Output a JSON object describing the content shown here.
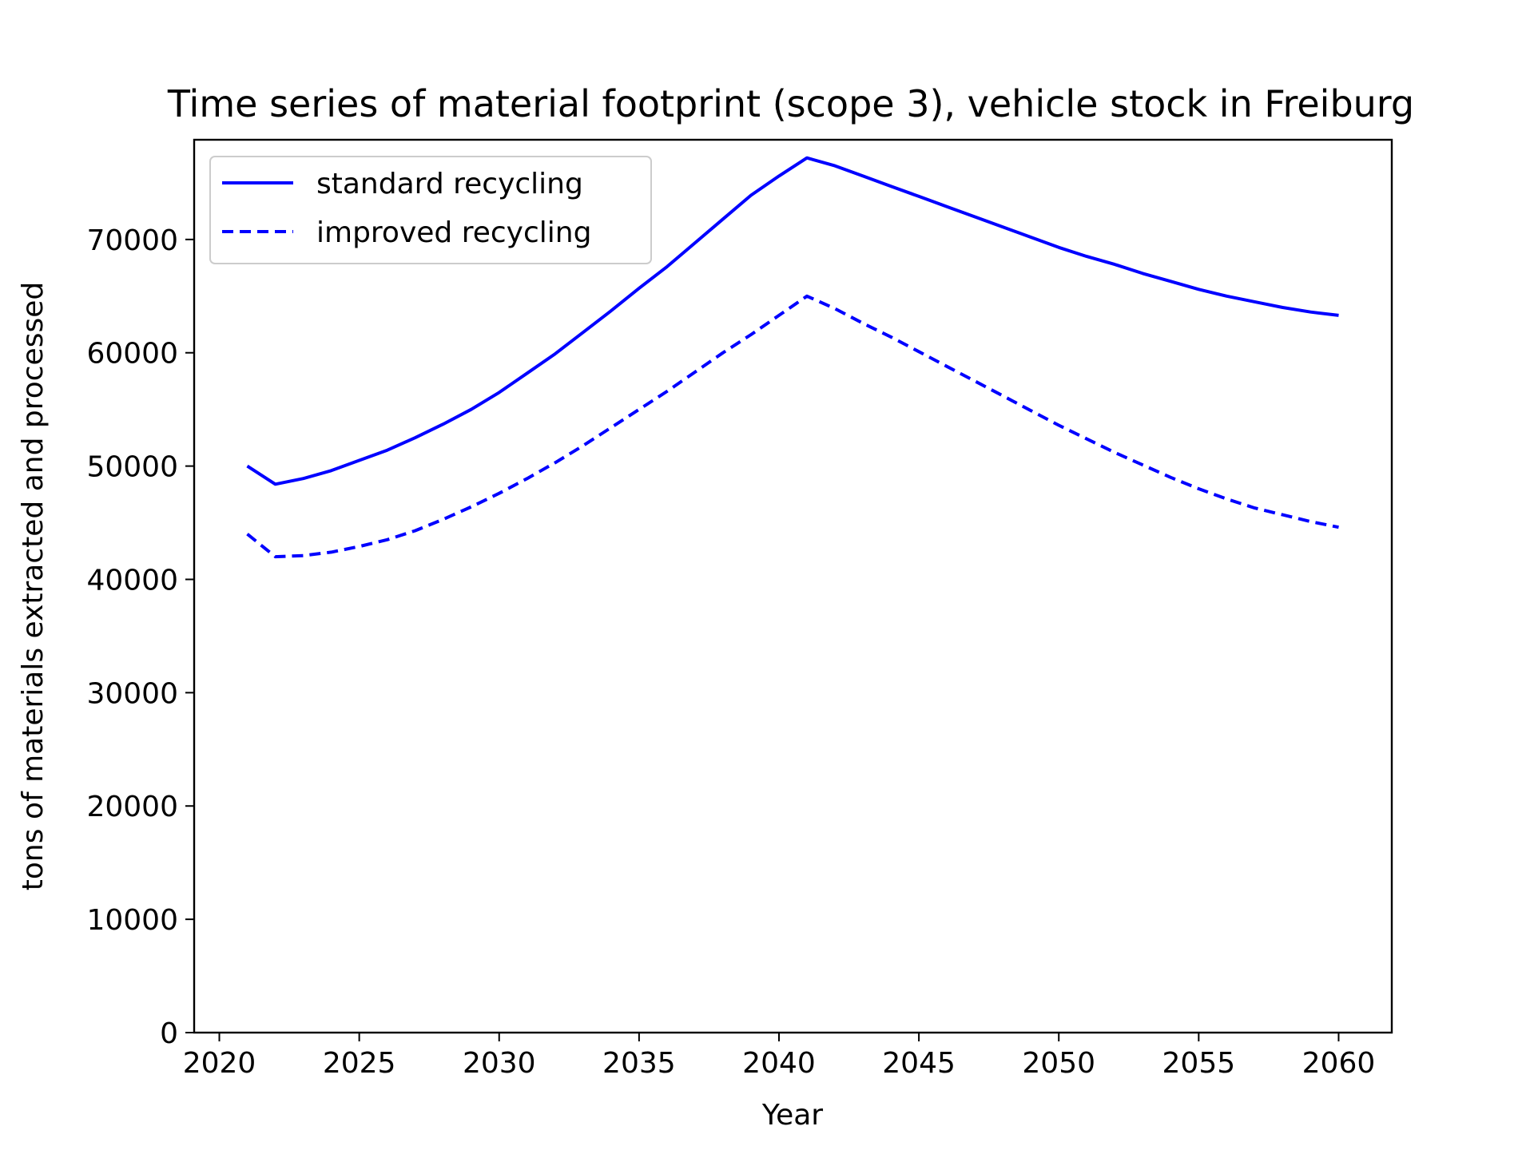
{
  "chart_data": {
    "type": "line",
    "title": "Time series of material footprint (scope 3), vehicle stock in Freiburg",
    "xlabel": "Year",
    "ylabel": "tons of materials extracted and processed",
    "xlim": [
      2019.1,
      2061.9
    ],
    "ylim": [
      0,
      78800
    ],
    "xticks": [
      2020,
      2025,
      2030,
      2035,
      2040,
      2045,
      2050,
      2055,
      2060
    ],
    "yticks": [
      0,
      10000,
      20000,
      30000,
      40000,
      50000,
      60000,
      70000
    ],
    "grid": false,
    "legend_position": "upper-left",
    "x": [
      2021,
      2022,
      2023,
      2024,
      2025,
      2026,
      2027,
      2028,
      2029,
      2030,
      2031,
      2032,
      2033,
      2034,
      2035,
      2036,
      2037,
      2038,
      2039,
      2040,
      2041,
      2042,
      2043,
      2044,
      2045,
      2046,
      2047,
      2048,
      2049,
      2050,
      2051,
      2052,
      2053,
      2054,
      2055,
      2056,
      2057,
      2058,
      2059,
      2060
    ],
    "series": [
      {
        "name": "standard recycling",
        "color": "#0000ff",
        "line_style": "solid",
        "values": [
          50000,
          48400,
          48900,
          49600,
          50500,
          51400,
          52500,
          53700,
          55000,
          56500,
          58200,
          59900,
          61800,
          63700,
          65700,
          67600,
          69700,
          71800,
          73900,
          75600,
          77200,
          76500,
          75600,
          74700,
          73800,
          72900,
          72000,
          71100,
          70200,
          69300,
          68500,
          67800,
          67000,
          66300,
          65600,
          65000,
          64500,
          64000,
          63600,
          63300
        ]
      },
      {
        "name": "improved recycling",
        "color": "#0000ff",
        "line_style": "dashed",
        "values": [
          44000,
          42000,
          42100,
          42400,
          42900,
          43500,
          44300,
          45300,
          46400,
          47600,
          48900,
          50300,
          51800,
          53400,
          55000,
          56600,
          58300,
          60000,
          61600,
          63300,
          65000,
          63900,
          62600,
          61400,
          60100,
          58800,
          57500,
          56200,
          54900,
          53600,
          52400,
          51200,
          50100,
          49000,
          48000,
          47100,
          46300,
          45700,
          45100,
          44600
        ]
      }
    ]
  }
}
